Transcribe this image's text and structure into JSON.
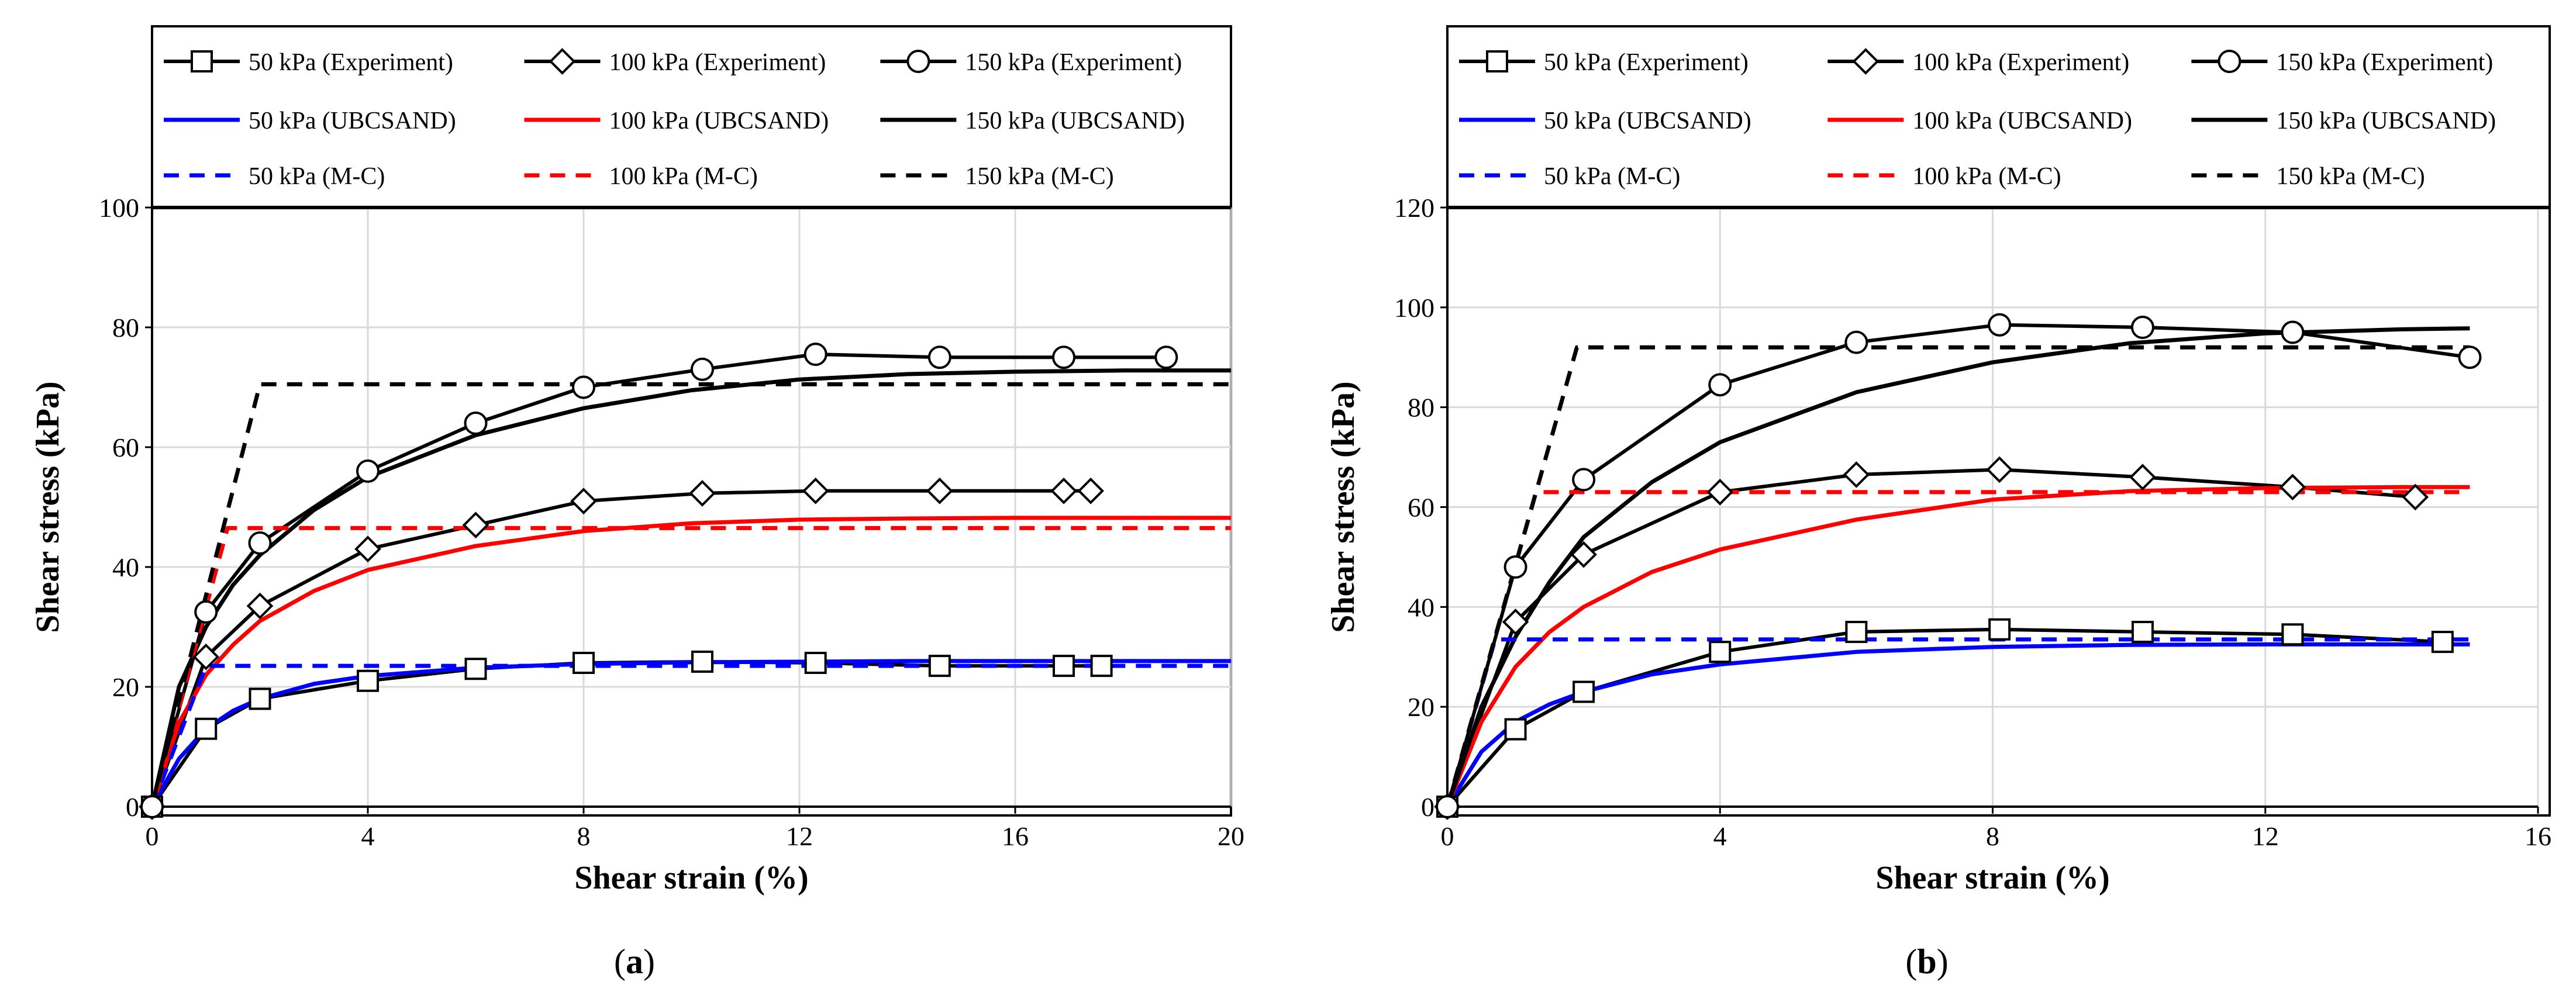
{
  "chart_data": [
    {
      "panel": "a",
      "caption_letter": "a",
      "type": "line",
      "xlabel": "Shear strain (%)",
      "ylabel": "Shear stress (kPa)",
      "xlim": [
        0,
        20
      ],
      "ylim": [
        0,
        100
      ],
      "xticks": [
        0,
        4,
        8,
        12,
        16,
        20
      ],
      "yticks": [
        0,
        20,
        40,
        60,
        80,
        100
      ],
      "grid": true,
      "legend": [
        "50 kPa (Experiment)",
        "100 kPa (Experiment)",
        "150 kPa (Experiment)",
        "50 kPa (UBCSAND)",
        "100 kPa (UBCSAND)",
        "150 kPa (UBCSAND)",
        "50 kPa (M-C)",
        "100 kPa (M-C)",
        "150 kPa (M-C)"
      ],
      "series": [
        {
          "name": "50 kPa (Experiment)",
          "color": "#000000",
          "dash": "solid",
          "marker": "square",
          "x": [
            0,
            1,
            2,
            4,
            6,
            8,
            10.2,
            12.3,
            14.6,
            16.9,
            17.6
          ],
          "y": [
            0,
            13,
            18,
            21,
            23,
            24,
            24.2,
            24,
            23.5,
            23.5,
            23.5
          ]
        },
        {
          "name": "100 kPa (Experiment)",
          "color": "#000000",
          "dash": "solid",
          "marker": "diamond",
          "x": [
            0,
            1,
            2,
            4,
            6,
            8,
            10.2,
            12.3,
            14.6,
            16.9,
            17.4
          ],
          "y": [
            0,
            25,
            33.5,
            43,
            47,
            51,
            52.3,
            52.7,
            52.7,
            52.7,
            52.7
          ]
        },
        {
          "name": "150 kPa (Experiment)",
          "color": "#000000",
          "dash": "solid",
          "marker": "circle",
          "x": [
            0,
            1,
            2,
            4,
            6,
            8,
            10.2,
            12.3,
            14.6,
            16.9,
            18.8
          ],
          "y": [
            0,
            32.5,
            44,
            56,
            64,
            70,
            73,
            75.5,
            75,
            75,
            75
          ]
        },
        {
          "name": "50 kPa (UBCSAND)",
          "color": "#0000ff",
          "dash": "solid",
          "marker": "none",
          "x": [
            0,
            0.5,
            1,
            1.5,
            2,
            3,
            4,
            6,
            8,
            10,
            12,
            14,
            16,
            18,
            20
          ],
          "y": [
            0,
            8,
            13,
            16,
            18,
            20.5,
            21.8,
            23.2,
            23.8,
            24.1,
            24.2,
            24.3,
            24.3,
            24.3,
            24.3
          ]
        },
        {
          "name": "100 kPa (UBCSAND)",
          "color": "#ff0000",
          "dash": "solid",
          "marker": "none",
          "x": [
            0,
            0.5,
            1,
            1.5,
            2,
            3,
            4,
            6,
            8,
            10,
            12,
            14,
            16,
            18,
            20
          ],
          "y": [
            0,
            14,
            22,
            27,
            31,
            36,
            39.5,
            43.5,
            46,
            47.3,
            47.9,
            48.1,
            48.2,
            48.2,
            48.2
          ]
        },
        {
          "name": "150 kPa (UBCSAND)",
          "color": "#000000",
          "dash": "solid",
          "marker": "none",
          "x": [
            0,
            0.5,
            1,
            1.5,
            2,
            3,
            4,
            6,
            8,
            10,
            12,
            14,
            16,
            18,
            20
          ],
          "y": [
            0,
            20,
            30,
            37,
            42,
            49.5,
            55,
            62,
            66.5,
            69.5,
            71.3,
            72.2,
            72.6,
            72.8,
            72.8
          ]
        },
        {
          "name": "50 kPa (M-C)",
          "color": "#0000ff",
          "dash": "dashed",
          "marker": "none",
          "x": [
            0,
            1,
            20
          ],
          "y": [
            0,
            23.5,
            23.5
          ]
        },
        {
          "name": "100 kPa (M-C)",
          "color": "#ff0000",
          "dash": "dashed",
          "marker": "none",
          "x": [
            0,
            1.4,
            20
          ],
          "y": [
            0,
            46.5,
            46.5
          ]
        },
        {
          "name": "150 kPa (M-C)",
          "color": "#000000",
          "dash": "dashed",
          "marker": "none",
          "x": [
            0,
            2,
            20
          ],
          "y": [
            0,
            70.5,
            70.5
          ]
        }
      ]
    },
    {
      "panel": "b",
      "caption_letter": "b",
      "type": "line",
      "xlabel": "Shear strain (%)",
      "ylabel": "Shear stress (kPa)",
      "xlim": [
        0,
        16
      ],
      "ylim": [
        0,
        120
      ],
      "xticks": [
        0,
        4,
        8,
        12,
        16
      ],
      "yticks": [
        0,
        20,
        40,
        60,
        80,
        100,
        120
      ],
      "grid": true,
      "legend": [
        "50 kPa (Experiment)",
        "100 kPa (Experiment)",
        "150 kPa (Experiment)",
        "50 kPa (UBCSAND)",
        "100 kPa (UBCSAND)",
        "150 kPa (UBCSAND)",
        "50 kPa (M-C)",
        "100 kPa (M-C)",
        "150 kPa (M-C)"
      ],
      "series": [
        {
          "name": "50 kPa (Experiment)",
          "color": "#000000",
          "dash": "solid",
          "marker": "square",
          "x": [
            0,
            1,
            2,
            4,
            6,
            8.1,
            10.2,
            12.4,
            14.6
          ],
          "y": [
            0,
            15.5,
            23,
            31,
            35,
            35.5,
            35,
            34.5,
            33
          ]
        },
        {
          "name": "100 kPa (Experiment)",
          "color": "#000000",
          "dash": "solid",
          "marker": "diamond",
          "x": [
            0,
            1,
            2,
            4,
            6,
            8.1,
            10.2,
            12.4,
            14.2
          ],
          "y": [
            0,
            37,
            50.5,
            63,
            66.5,
            67.5,
            66,
            64,
            62
          ]
        },
        {
          "name": "150 kPa (Experiment)",
          "color": "#000000",
          "dash": "solid",
          "marker": "circle",
          "x": [
            0,
            1,
            2,
            4,
            6,
            8.1,
            10.2,
            12.4,
            15
          ],
          "y": [
            0,
            48,
            65.5,
            84.5,
            93,
            96.5,
            96,
            95,
            90
          ]
        },
        {
          "name": "50 kPa (UBCSAND)",
          "color": "#0000ff",
          "dash": "solid",
          "marker": "none",
          "x": [
            0,
            0.5,
            1,
            1.5,
            2,
            3,
            4,
            6,
            8,
            10,
            12,
            14,
            15
          ],
          "y": [
            0,
            11,
            17,
            20.5,
            23,
            26.5,
            28.5,
            31,
            32,
            32.4,
            32.5,
            32.5,
            32.5
          ]
        },
        {
          "name": "100 kPa (UBCSAND)",
          "color": "#ff0000",
          "dash": "solid",
          "marker": "none",
          "x": [
            0,
            0.5,
            1,
            1.5,
            2,
            3,
            4,
            6,
            8,
            10,
            12,
            14,
            15
          ],
          "y": [
            0,
            17,
            28,
            35,
            40,
            47,
            51.5,
            57.5,
            61.5,
            63.2,
            63.8,
            64,
            64
          ]
        },
        {
          "name": "150 kPa (UBCSAND)",
          "color": "#000000",
          "dash": "solid",
          "marker": "none",
          "x": [
            0,
            0.5,
            1,
            1.5,
            2,
            3,
            4,
            6,
            8,
            10,
            12,
            14,
            15
          ],
          "y": [
            0,
            20,
            34,
            45,
            54,
            65,
            73,
            83,
            89,
            92.8,
            94.8,
            95.6,
            95.8
          ]
        },
        {
          "name": "50 kPa (M-C)",
          "color": "#0000ff",
          "dash": "dashed",
          "marker": "none",
          "x": [
            0,
            0.7,
            15
          ],
          "y": [
            0,
            33.5,
            33.5
          ]
        },
        {
          "name": "100 kPa (M-C)",
          "color": "#ff0000",
          "dash": "dashed",
          "marker": "none",
          "x": [
            0,
            1.3,
            15
          ],
          "y": [
            0,
            63,
            63
          ]
        },
        {
          "name": "150 kPa (M-C)",
          "color": "#000000",
          "dash": "dashed",
          "marker": "none",
          "x": [
            0,
            1.9,
            15
          ],
          "y": [
            0,
            92,
            92
          ]
        }
      ]
    }
  ]
}
